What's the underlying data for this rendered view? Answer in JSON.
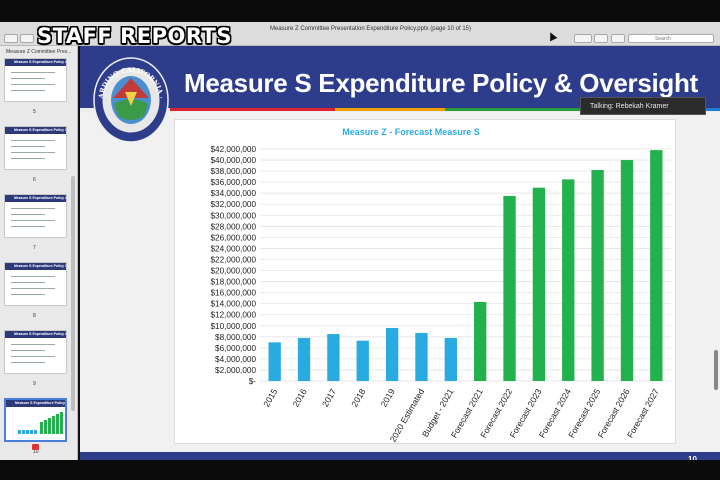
{
  "overlay": {
    "banner": "STAFF REPORTS"
  },
  "toolbar": {
    "doc_title": "Measure Z Committee Presentation Expenditure Policy.pptx (page 10 of 15)",
    "search_placeholder": "Search"
  },
  "sidebar": {
    "header": "Measure Z Committee Pres...",
    "thumbs": [
      {
        "title": "Measure S Expenditure Policy & Oversight",
        "page": "5"
      },
      {
        "title": "Measure S Expenditure Policy & Oversight",
        "page": "6"
      },
      {
        "title": "Measure S Expenditure Policy & Oversight",
        "page": "7"
      },
      {
        "title": "Measure S Expenditure Policy & Oversight",
        "page": "8"
      },
      {
        "title": "Measure S Expenditure Policy & Oversight",
        "page": "9"
      },
      {
        "title": "Measure S Expenditure Policy & Oversight",
        "page": "10"
      }
    ]
  },
  "slide": {
    "title": "Measure S Expenditure Policy & Oversight",
    "page_number": "10",
    "seal_text": "CITY OF SAN BERNARDINO CALIFORNIA · FOUNDED IN 1810"
  },
  "talking": {
    "label": "Talking: Rebekah Kramer"
  },
  "colors": {
    "header_blue": "#2e3c8c",
    "actual_bar": "#29abe2",
    "forecast_bar": "#22b14c",
    "title_cyan": "#29abe2"
  },
  "chart_data": {
    "type": "bar",
    "title": "Measure Z - Forecast Measure S",
    "categories": [
      "2015",
      "2016",
      "2017",
      "2018",
      "2019",
      "2020 Estimated",
      "Budget - 2021",
      "Forecast 2021",
      "Forecast 2022",
      "Forecast 2023",
      "Forecast 2024",
      "Forecast 2025",
      "Forecast 2026",
      "Forecast 2027"
    ],
    "values": [
      7000000,
      7800000,
      8500000,
      7300000,
      9600000,
      8700000,
      7800000,
      14300000,
      33500000,
      35000000,
      36500000,
      38200000,
      40000000,
      41800000
    ],
    "bar_colors": [
      "#29abe2",
      "#29abe2",
      "#29abe2",
      "#29abe2",
      "#29abe2",
      "#29abe2",
      "#29abe2",
      "#22b14c",
      "#22b14c",
      "#22b14c",
      "#22b14c",
      "#22b14c",
      "#22b14c",
      "#22b14c"
    ],
    "yticks": [
      "$-",
      "$2,000,000",
      "$4,000,000",
      "$6,000,000",
      "$8,000,000",
      "$10,000,000",
      "$12,000,000",
      "$14,000,000",
      "$16,000,000",
      "$18,000,000",
      "$20,000,000",
      "$22,000,000",
      "$24,000,000",
      "$26,000,000",
      "$28,000,000",
      "$30,000,000",
      "$32,000,000",
      "$34,000,000",
      "$36,000,000",
      "$38,000,000",
      "$40,000,000",
      "$42,000,000"
    ],
    "ylim": [
      0,
      42000000
    ],
    "grid": true,
    "legend": "none"
  }
}
